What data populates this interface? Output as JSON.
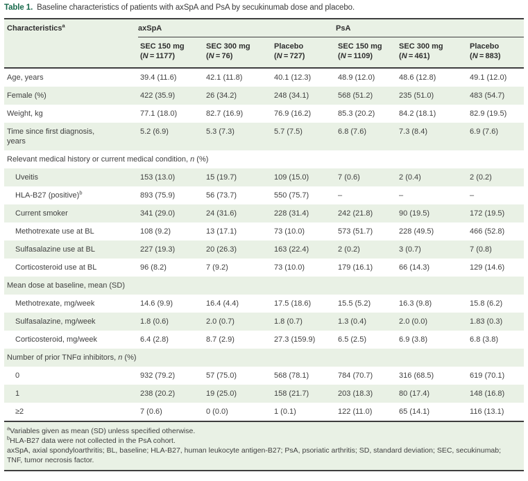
{
  "colors": {
    "accent_green": "#17694b",
    "band_green": "#e9f1e5",
    "border_dark": "#3e3e3e",
    "text": "#3f3f3f"
  },
  "caption": {
    "label": "Table 1.",
    "text": "Baseline characteristics of patients with axSpA and PsA by secukinumab dose and placebo."
  },
  "header": {
    "characteristics": "Characteristics",
    "characteristics_sup": "a",
    "groups": [
      {
        "label": "axSpA"
      },
      {
        "label": "PsA"
      }
    ],
    "columns": [
      {
        "label": "SEC 150 mg",
        "n": "1177"
      },
      {
        "label": "SEC 300 mg",
        "n": "76"
      },
      {
        "label": "Placebo",
        "n": "727"
      },
      {
        "label": "SEC 150 mg",
        "n": "1109"
      },
      {
        "label": "SEC 300 mg",
        "n": "461"
      },
      {
        "label": "Placebo",
        "n": "883"
      }
    ]
  },
  "rows": [
    {
      "type": "data",
      "indent": false,
      "label": "Age, years",
      "values": [
        "39.4 (11.6)",
        "42.1 (11.8)",
        "40.1 (12.3)",
        "48.9 (12.0)",
        "48.6 (12.8)",
        "49.1 (12.0)"
      ]
    },
    {
      "type": "data",
      "indent": false,
      "label": "Female (%)",
      "values": [
        "422 (35.9)",
        "26 (34.2)",
        "248 (34.1)",
        "568 (51.2)",
        "235 (51.0)",
        "483 (54.7)"
      ]
    },
    {
      "type": "data",
      "indent": false,
      "label": "Weight, kg",
      "values": [
        "77.1 (18.0)",
        "82.7 (16.9)",
        "76.9 (16.2)",
        "85.3 (20.2)",
        "84.2 (18.1)",
        "82.9 (19.5)"
      ]
    },
    {
      "type": "data",
      "indent": false,
      "label": "Time since first diagnosis, years",
      "values": [
        "5.2 (6.9)",
        "5.3 (7.3)",
        "5.7 (7.5)",
        "6.8 (7.6)",
        "7.3 (8.4)",
        "6.9 (7.6)"
      ]
    },
    {
      "type": "section",
      "label": "Relevant medical history or current medical condition, ",
      "italic": "n",
      "suffix": " (%)"
    },
    {
      "type": "data",
      "indent": true,
      "label": "Uveitis",
      "values": [
        "153 (13.0)",
        "15 (19.7)",
        "109 (15.0)",
        "7 (0.6)",
        "2 (0.4)",
        "2 (0.2)"
      ]
    },
    {
      "type": "data",
      "indent": true,
      "label": "HLA-B27 (positive)",
      "sup": "b",
      "values": [
        "893 (75.9)",
        "56 (73.7)",
        "550 (75.7)",
        "–",
        "–",
        "–"
      ]
    },
    {
      "type": "data",
      "indent": true,
      "label": "Current smoker",
      "values": [
        "341 (29.0)",
        "24 (31.6)",
        "228 (31.4)",
        "242 (21.8)",
        "90 (19.5)",
        "172 (19.5)"
      ]
    },
    {
      "type": "data",
      "indent": true,
      "label": "Methotrexate use at BL",
      "values": [
        "108 (9.2)",
        "13 (17.1)",
        "73 (10.0)",
        "573 (51.7)",
        "228 (49.5)",
        "466 (52.8)"
      ]
    },
    {
      "type": "data",
      "indent": true,
      "label": "Sulfasalazine use at BL",
      "values": [
        "227 (19.3)",
        "20 (26.3)",
        "163 (22.4)",
        "2 (0.2)",
        "3 (0.7)",
        "7 (0.8)"
      ]
    },
    {
      "type": "data",
      "indent": true,
      "label": "Corticosteroid use at BL",
      "values": [
        "96 (8.2)",
        "7 (9.2)",
        "73 (10.0)",
        "179 (16.1)",
        "66 (14.3)",
        "129 (14.6)"
      ]
    },
    {
      "type": "section",
      "label": "Mean dose at baseline, mean (SD)",
      "italic": "",
      "suffix": ""
    },
    {
      "type": "data",
      "indent": true,
      "label": "Methotrexate, mg/week",
      "values": [
        "14.6 (9.9)",
        "16.4 (4.4)",
        "17.5 (18.6)",
        "15.5 (5.2)",
        "16.3 (9.8)",
        "15.8 (6.2)"
      ]
    },
    {
      "type": "data",
      "indent": true,
      "label": "Sulfasalazine, mg/week",
      "values": [
        "1.8 (0.6)",
        "2.0 (0.7)",
        "1.8 (0.7)",
        "1.3 (0.4)",
        "2.0 (0.0)",
        "1.83 (0.3)"
      ]
    },
    {
      "type": "data",
      "indent": true,
      "label": "Corticosteroid, mg/week",
      "values": [
        "6.4 (2.8)",
        "8.7 (2.9)",
        "27.3 (159.9)",
        "6.5 (2.5)",
        "6.9 (3.8)",
        "6.8 (3.8)"
      ]
    },
    {
      "type": "section",
      "label": "Number of prior TNFα inhibitors, ",
      "italic": "n",
      "suffix": " (%)"
    },
    {
      "type": "data",
      "indent": true,
      "label": "0",
      "values": [
        "932 (79.2)",
        "57 (75.0)",
        "568 (78.1)",
        "784 (70.7)",
        "316 (68.5)",
        "619 (70.1)"
      ]
    },
    {
      "type": "data",
      "indent": true,
      "label": "1",
      "values": [
        "238 (20.2)",
        "19 (25.0)",
        "158 (21.7)",
        "203 (18.3)",
        "80 (17.4)",
        "148 (16.8)"
      ]
    },
    {
      "type": "data",
      "indent": true,
      "label": "≥2",
      "values": [
        "7 (0.6)",
        "0 (0.0)",
        "1 (0.1)",
        "122 (11.0)",
        "65 (14.1)",
        "116 (13.1)"
      ]
    }
  ],
  "footnotes": [
    {
      "sup": "a",
      "text": "Variables given as mean (SD) unless specified otherwise."
    },
    {
      "sup": "b",
      "text": "HLA-B27 data were not collected in the PsA cohort."
    },
    {
      "sup": "",
      "text": "axSpA, axial spondyloarthritis; BL, baseline; HLA-B27, human leukocyte antigen-B27; PsA, psoriatic arthritis; SD, standard deviation; SEC, secukinumab; TNF, tumor necrosis factor."
    }
  ]
}
